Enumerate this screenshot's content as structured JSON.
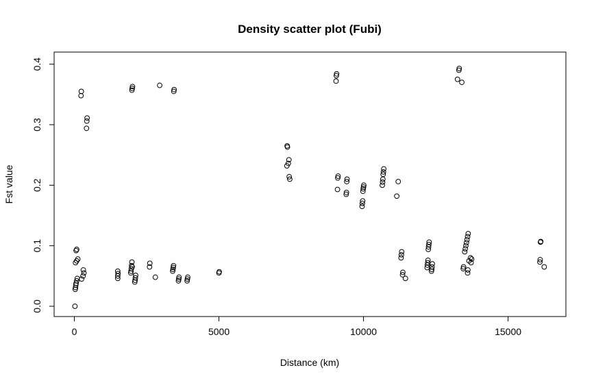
{
  "chart_data": {
    "type": "scatter",
    "title": "Density scatter plot (Fubi)",
    "xlabel": "Distance (km)",
    "ylabel": "Fst value",
    "xlim": [
      -700,
      17000
    ],
    "ylim": [
      -0.017,
      0.42
    ],
    "xticks": [
      0,
      5000,
      10000,
      15000
    ],
    "xtick_labels": [
      "0",
      "5000",
      "10000",
      "15000"
    ],
    "yticks": [
      0.0,
      0.1,
      0.2,
      0.3,
      0.4
    ],
    "ytick_labels": [
      "0.0",
      "0.1",
      "0.2",
      "0.3",
      "0.4"
    ],
    "grid": false,
    "marker": "open-circle",
    "points": [
      [
        20,
        0.0
      ],
      [
        30,
        0.028
      ],
      [
        40,
        0.031
      ],
      [
        50,
        0.035
      ],
      [
        60,
        0.038
      ],
      [
        80,
        0.042
      ],
      [
        100,
        0.046
      ],
      [
        40,
        0.072
      ],
      [
        80,
        0.075
      ],
      [
        120,
        0.078
      ],
      [
        60,
        0.092
      ],
      [
        80,
        0.094
      ],
      [
        250,
        0.045
      ],
      [
        300,
        0.05
      ],
      [
        330,
        0.055
      ],
      [
        310,
        0.06
      ],
      [
        230,
        0.348
      ],
      [
        240,
        0.355
      ],
      [
        420,
        0.294
      ],
      [
        430,
        0.306
      ],
      [
        440,
        0.311
      ],
      [
        1500,
        0.046
      ],
      [
        1500,
        0.05
      ],
      [
        1510,
        0.054
      ],
      [
        1500,
        0.058
      ],
      [
        1950,
        0.055
      ],
      [
        1960,
        0.058
      ],
      [
        1970,
        0.062
      ],
      [
        2000,
        0.065
      ],
      [
        1980,
        0.067
      ],
      [
        1990,
        0.073
      ],
      [
        2090,
        0.04
      ],
      [
        2100,
        0.043
      ],
      [
        2110,
        0.047
      ],
      [
        2120,
        0.051
      ],
      [
        1990,
        0.357
      ],
      [
        2000,
        0.36
      ],
      [
        2010,
        0.363
      ],
      [
        2600,
        0.065
      ],
      [
        2610,
        0.071
      ],
      [
        2800,
        0.048
      ],
      [
        2950,
        0.365
      ],
      [
        3400,
        0.058
      ],
      [
        3410,
        0.061
      ],
      [
        3420,
        0.064
      ],
      [
        3430,
        0.067
      ],
      [
        3440,
        0.355
      ],
      [
        3450,
        0.358
      ],
      [
        3600,
        0.042
      ],
      [
        3610,
        0.045
      ],
      [
        3620,
        0.048
      ],
      [
        3900,
        0.042
      ],
      [
        3910,
        0.045
      ],
      [
        3920,
        0.048
      ],
      [
        5000,
        0.055
      ],
      [
        5010,
        0.057
      ],
      [
        7350,
        0.232
      ],
      [
        7360,
        0.265
      ],
      [
        7370,
        0.263
      ],
      [
        7400,
        0.236
      ],
      [
        7420,
        0.242
      ],
      [
        7430,
        0.214
      ],
      [
        7450,
        0.21
      ],
      [
        9050,
        0.372
      ],
      [
        9060,
        0.381
      ],
      [
        9070,
        0.384
      ],
      [
        9100,
        0.193
      ],
      [
        9110,
        0.212
      ],
      [
        9120,
        0.215
      ],
      [
        9400,
        0.185
      ],
      [
        9410,
        0.188
      ],
      [
        9420,
        0.206
      ],
      [
        9430,
        0.21
      ],
      [
        9950,
        0.165
      ],
      [
        9960,
        0.17
      ],
      [
        9970,
        0.174
      ],
      [
        9980,
        0.19
      ],
      [
        9990,
        0.194
      ],
      [
        10000,
        0.197
      ],
      [
        10010,
        0.2
      ],
      [
        10650,
        0.2
      ],
      [
        10660,
        0.205
      ],
      [
        10670,
        0.21
      ],
      [
        10680,
        0.218
      ],
      [
        10690,
        0.222
      ],
      [
        10700,
        0.227
      ],
      [
        11150,
        0.182
      ],
      [
        11200,
        0.206
      ],
      [
        11300,
        0.08
      ],
      [
        11310,
        0.085
      ],
      [
        11320,
        0.09
      ],
      [
        11350,
        0.052
      ],
      [
        11360,
        0.056
      ],
      [
        11450,
        0.046
      ],
      [
        12200,
        0.064
      ],
      [
        12210,
        0.068
      ],
      [
        12220,
        0.072
      ],
      [
        12230,
        0.076
      ],
      [
        12240,
        0.094
      ],
      [
        12250,
        0.098
      ],
      [
        12260,
        0.102
      ],
      [
        12270,
        0.106
      ],
      [
        12350,
        0.058
      ],
      [
        12360,
        0.061
      ],
      [
        12370,
        0.065
      ],
      [
        12380,
        0.07
      ],
      [
        13250,
        0.375
      ],
      [
        13300,
        0.39
      ],
      [
        13310,
        0.393
      ],
      [
        13400,
        0.37
      ],
      [
        13450,
        0.062
      ],
      [
        13460,
        0.065
      ],
      [
        13500,
        0.09
      ],
      [
        13520,
        0.095
      ],
      [
        13540,
        0.1
      ],
      [
        13560,
        0.105
      ],
      [
        13580,
        0.11
      ],
      [
        13600,
        0.115
      ],
      [
        13620,
        0.12
      ],
      [
        13600,
        0.055
      ],
      [
        13610,
        0.06
      ],
      [
        13650,
        0.075
      ],
      [
        13700,
        0.08
      ],
      [
        13720,
        0.072
      ],
      [
        13740,
        0.078
      ],
      [
        16100,
        0.073
      ],
      [
        16110,
        0.077
      ],
      [
        16120,
        0.106
      ],
      [
        16130,
        0.107
      ],
      [
        16250,
        0.065
      ]
    ]
  }
}
